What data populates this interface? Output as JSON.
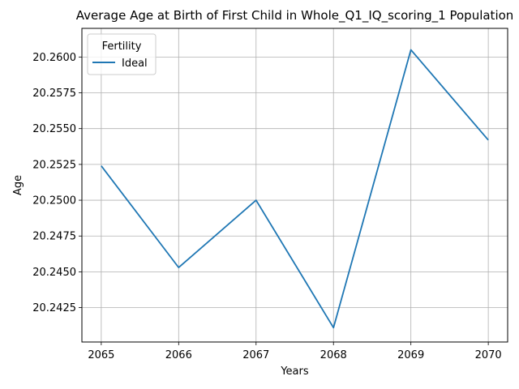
{
  "chart_data": {
    "type": "line",
    "title": "Average Age at Birth of First Child in Whole_Q1_IQ_scoring_1 Population",
    "xlabel": "Years",
    "ylabel": "Age",
    "x": [
      2065,
      2066,
      2067,
      2068,
      2069,
      2070
    ],
    "xticks": [
      "2065",
      "2066",
      "2067",
      "2068",
      "2069",
      "2070"
    ],
    "yticks": [
      "20.2425",
      "20.2450",
      "20.2475",
      "20.2500",
      "20.2525",
      "20.2550",
      "20.2575",
      "20.2600"
    ],
    "xlim": [
      2064.75,
      2070.25
    ],
    "ylim": [
      20.2401,
      20.262
    ],
    "grid": true,
    "legend": {
      "title": "Fertility",
      "position": "top-left"
    },
    "series": [
      {
        "name": "Ideal",
        "color": "#1f77b4",
        "values": [
          20.2524,
          20.2453,
          20.25,
          20.2411,
          20.2605,
          20.2542
        ]
      }
    ]
  }
}
